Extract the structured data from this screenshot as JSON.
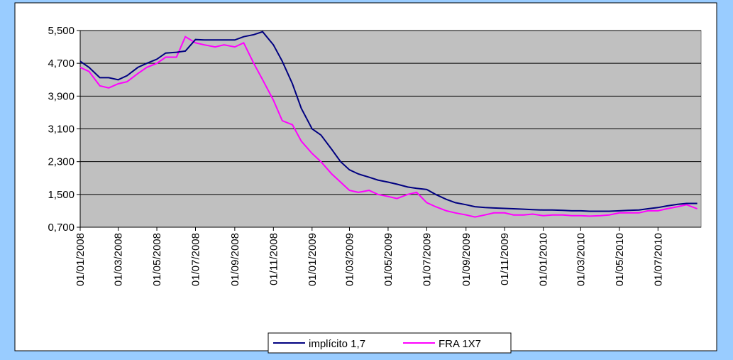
{
  "chart_data": {
    "type": "line",
    "x": [
      "01/01/2008",
      "15/01/2008",
      "01/02/2008",
      "15/02/2008",
      "01/03/2008",
      "15/03/2008",
      "01/04/2008",
      "15/04/2008",
      "01/05/2008",
      "15/05/2008",
      "01/06/2008",
      "15/06/2008",
      "01/07/2008",
      "15/07/2008",
      "01/08/2008",
      "15/08/2008",
      "01/09/2008",
      "15/09/2008",
      "01/10/2008",
      "15/10/2008",
      "01/11/2008",
      "15/11/2008",
      "01/12/2008",
      "15/12/2008",
      "01/01/2009",
      "15/01/2009",
      "01/02/2009",
      "15/02/2009",
      "01/03/2009",
      "15/03/2009",
      "01/04/2009",
      "15/04/2009",
      "01/05/2009",
      "15/05/2009",
      "01/06/2009",
      "15/06/2009",
      "01/07/2009",
      "15/07/2009",
      "01/08/2009",
      "15/08/2009",
      "01/09/2009",
      "15/09/2009",
      "01/10/2009",
      "15/10/2009",
      "01/11/2009",
      "15/11/2009",
      "01/12/2009",
      "15/12/2009",
      "01/01/2010",
      "15/01/2010",
      "01/02/2010",
      "15/02/2010",
      "01/03/2010",
      "15/03/2010",
      "01/04/2010",
      "15/04/2010",
      "01/05/2010",
      "15/05/2010",
      "01/06/2010",
      "15/06/2010",
      "01/07/2010",
      "15/07/2010",
      "01/08/2010",
      "15/08/2010",
      "01/09/2010"
    ],
    "series": [
      {
        "name": "implícito 1,7",
        "color": "#000080",
        "values": [
          4.75,
          4.6,
          4.35,
          4.35,
          4.3,
          4.4,
          4.6,
          4.7,
          4.8,
          4.95,
          4.97,
          5.0,
          5.28,
          5.27,
          5.27,
          5.27,
          5.27,
          5.35,
          5.4,
          5.47,
          5.15,
          4.75,
          4.2,
          3.6,
          3.1,
          2.95,
          2.6,
          2.3,
          2.1,
          2.0,
          1.92,
          1.85,
          1.8,
          1.75,
          1.68,
          1.65,
          1.62,
          1.5,
          1.38,
          1.3,
          1.25,
          1.2,
          1.18,
          1.17,
          1.16,
          1.15,
          1.14,
          1.13,
          1.12,
          1.12,
          1.11,
          1.1,
          1.1,
          1.09,
          1.09,
          1.09,
          1.1,
          1.11,
          1.12,
          1.15,
          1.18,
          1.22,
          1.26,
          1.28,
          1.28
        ]
      },
      {
        "name": "FRA 1X7",
        "color": "#ff00ff",
        "values": [
          4.6,
          4.5,
          4.15,
          4.1,
          4.2,
          4.25,
          4.45,
          4.6,
          4.7,
          4.85,
          4.85,
          5.35,
          5.2,
          5.15,
          5.1,
          5.15,
          5.1,
          5.2,
          4.7,
          4.3,
          3.8,
          3.3,
          3.2,
          2.8,
          2.5,
          2.3,
          2.0,
          1.8,
          1.6,
          1.55,
          1.6,
          1.5,
          1.45,
          1.4,
          1.5,
          1.55,
          1.3,
          1.2,
          1.1,
          1.05,
          1.0,
          0.95,
          1.0,
          1.05,
          1.05,
          1.0,
          1.0,
          1.02,
          0.98,
          1.0,
          1.0,
          0.98,
          0.98,
          0.97,
          0.98,
          1.0,
          1.05,
          1.05,
          1.05,
          1.1,
          1.1,
          1.15,
          1.2,
          1.25,
          1.15
        ]
      }
    ],
    "xlim": [
      "01/01/2008",
      "07/09/2010"
    ],
    "xticks": [
      "01/01/2008",
      "01/03/2008",
      "01/05/2008",
      "01/07/2008",
      "01/09/2008",
      "01/11/2008",
      "01/01/2009",
      "01/03/2009",
      "01/05/2009",
      "01/07/2009",
      "01/09/2009",
      "01/11/2009",
      "01/01/2010",
      "01/03/2010",
      "01/05/2010",
      "01/07/2010"
    ],
    "ylim": [
      0.7,
      5.5
    ],
    "yticks": [
      {
        "value": 0.7,
        "label": "0,700"
      },
      {
        "value": 1.5,
        "label": "1,500"
      },
      {
        "value": 2.3,
        "label": "2,300"
      },
      {
        "value": 3.1,
        "label": "3,100"
      },
      {
        "value": 3.9,
        "label": "3,900"
      },
      {
        "value": 4.7,
        "label": "4,700"
      },
      {
        "value": 5.5,
        "label": "5,500"
      }
    ],
    "grid": true,
    "legend": "bottom"
  }
}
